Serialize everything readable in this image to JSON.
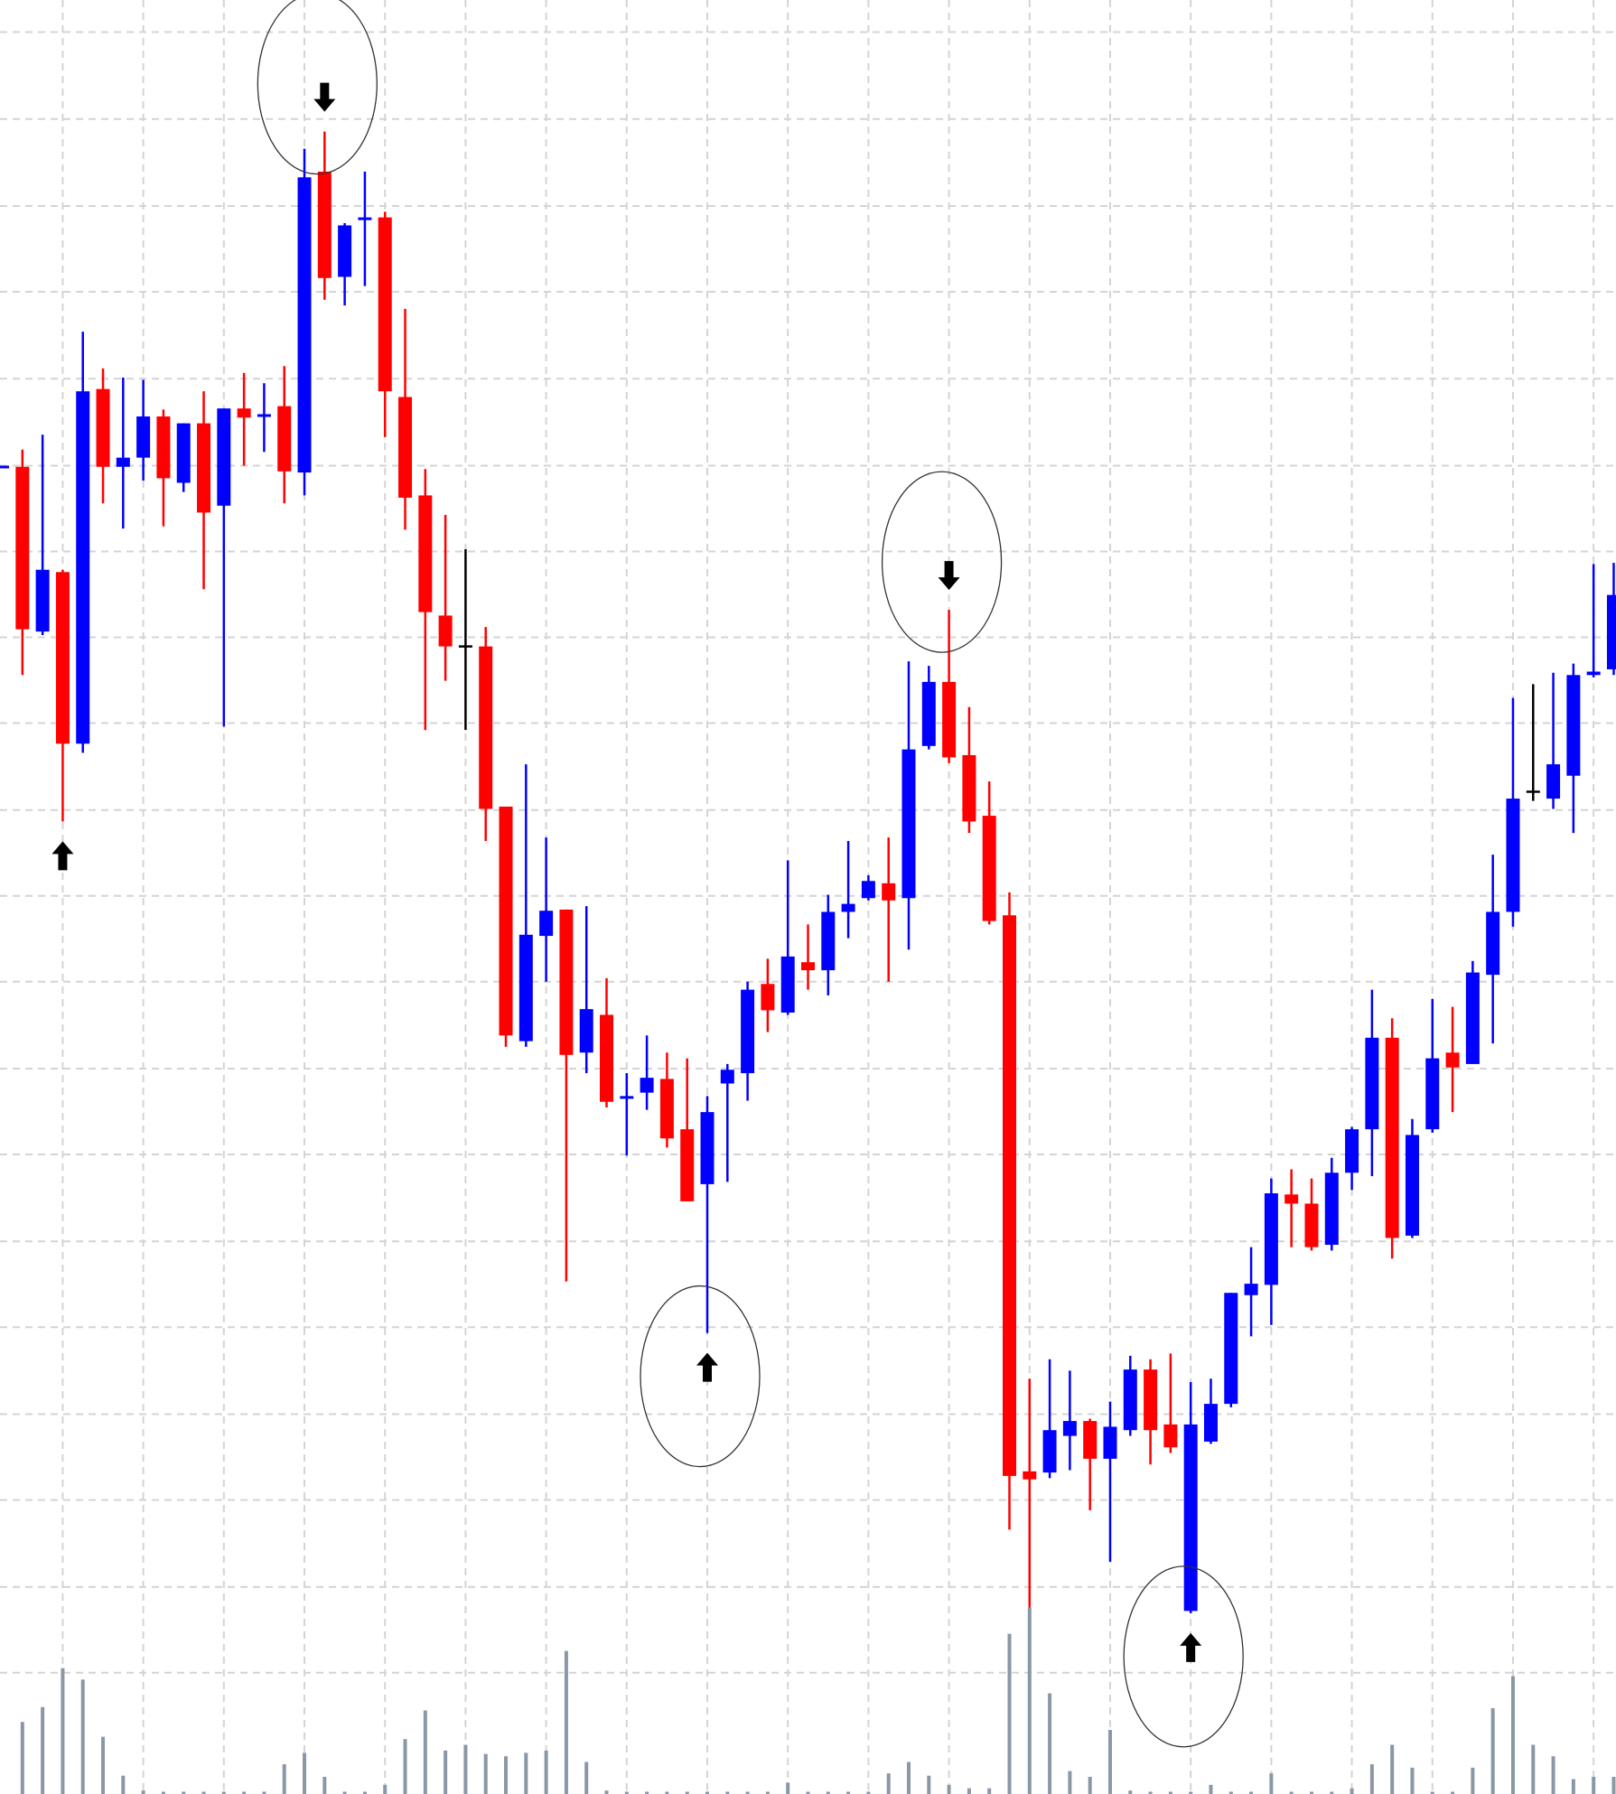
{
  "chart_data": {
    "type": "candlestick",
    "categories": [
      null,
      null,
      null,
      null,
      null,
      null,
      null,
      null,
      null,
      null,
      null,
      null,
      null,
      null,
      null,
      null,
      null,
      null,
      null,
      null,
      null,
      null,
      null,
      null,
      null,
      null,
      null,
      null,
      null,
      null,
      null,
      null,
      null,
      null,
      null,
      null,
      null,
      null,
      null,
      null,
      null,
      null,
      null,
      null,
      null,
      null,
      null,
      null,
      null,
      null,
      null,
      null,
      null,
      null,
      null,
      null,
      null,
      null,
      null,
      null,
      null,
      null,
      null,
      null,
      null,
      null,
      null,
      null,
      null,
      null,
      null,
      null,
      null,
      null,
      null,
      null,
      null,
      null,
      null,
      null,
      null
    ],
    "open": [
      1159,
      1160,
      1016,
      1068,
      918,
      1228,
      1160,
      1168,
      1204,
      1146,
      1198,
      1126,
      1211,
      1204,
      1213,
      1155,
      1418,
      1326,
      1376,
      1378,
      1221,
      1135,
      1030,
      1003,
      1003,
      863,
      658,
      750,
      773,
      648,
      681,
      608,
      613,
      625,
      581,
      533,
      621,
      630,
      708,
      683,
      727,
      720,
      771,
      783,
      796,
      783,
      916,
      972,
      908,
      855,
      768,
      282,
      281,
      313,
      326,
      293,
      318,
      371,
      323,
      160,
      308,
      341,
      436,
      445,
      524,
      516,
      480,
      543,
      581,
      661,
      488,
      581,
      648,
      638,
      716,
      771,
      876,
      870,
      890,
      978,
      983
    ],
    "high": [
      1161,
      1175,
      1188,
      1070,
      1278,
      1246,
      1238,
      1236,
      1210,
      1198,
      1226,
      1211,
      1242,
      1233,
      1248,
      1438,
      1453,
      1373,
      1418,
      1383,
      1298,
      1158,
      1118,
      1088,
      1020,
      863,
      900,
      836,
      773,
      776,
      713,
      630,
      663,
      648,
      643,
      610,
      638,
      710,
      730,
      816,
      760,
      786,
      833,
      803,
      836,
      990,
      986,
      1035,
      950,
      885,
      788,
      363,
      380,
      370,
      328,
      343,
      383,
      380,
      385,
      360,
      363,
      438,
      478,
      538,
      546,
      538,
      556,
      583,
      703,
      678,
      590,
      695,
      688,
      728,
      821,
      958,
      970,
      980,
      988,
      1075,
      1076
    ],
    "low": [
      1159,
      978,
      1013,
      850,
      910,
      1128,
      1106,
      1148,
      1108,
      1138,
      1053,
      933,
      1161,
      1173,
      1128,
      1135,
      1306,
      1301,
      1318,
      1186,
      1105,
      930,
      973,
      930,
      833,
      653,
      653,
      710,
      448,
      630,
      600,
      558,
      598,
      565,
      518,
      403,
      535,
      606,
      666,
      681,
      703,
      698,
      748,
      781,
      710,
      738,
      913,
      901,
      840,
      760,
      231,
      163,
      276,
      283,
      248,
      203,
      313,
      288,
      298,
      158,
      306,
      338,
      400,
      410,
      478,
      475,
      475,
      528,
      540,
      468,
      486,
      578,
      596,
      638,
      656,
      758,
      868,
      861,
      840,
      976,
      978
    ],
    "close": [
      1161,
      1018,
      1070,
      918,
      1226,
      1160,
      1168,
      1204,
      1150,
      1198,
      1120,
      1211,
      1203,
      1206,
      1156,
      1413,
      1325,
      1371,
      1378,
      1226,
      1133,
      1033,
      1003,
      1003,
      861,
      663,
      751,
      772,
      646,
      686,
      605,
      610,
      626,
      573,
      518,
      596,
      633,
      703,
      685,
      732,
      720,
      771,
      778,
      798,
      781,
      913,
      972,
      906,
      850,
      763,
      278,
      275,
      318,
      326,
      293,
      321,
      371,
      318,
      303,
      323,
      341,
      438,
      446,
      525,
      516,
      478,
      543,
      581,
      661,
      486,
      576,
      643,
      635,
      718,
      771,
      870,
      876,
      900,
      978,
      981,
      1048
    ],
    "volume": [
      0,
      63,
      76,
      110,
      100,
      50,
      16,
      3,
      2,
      2,
      2,
      2,
      2,
      2,
      26,
      36,
      15,
      2,
      2,
      8,
      48,
      73,
      38,
      43,
      35,
      33,
      36,
      38,
      125,
      28,
      3,
      2,
      2,
      2,
      2,
      2,
      2,
      2,
      2,
      10,
      2,
      2,
      2,
      2,
      18,
      28,
      16,
      8,
      5,
      5,
      140,
      163,
      88,
      20,
      15,
      56,
      3,
      2,
      2,
      2,
      8,
      2,
      2,
      18,
      2,
      2,
      2,
      5,
      26,
      43,
      23,
      2,
      2,
      23,
      75,
      103,
      43,
      33,
      13,
      15,
      15
    ],
    "up_color": "#0000ff",
    "down_color": "#ff0000",
    "doji_color": "#000000",
    "volume_color": "#8a97a6",
    "ylim": [
      0,
      1568
    ],
    "yticks": [
      106,
      181,
      257,
      332,
      408,
      483,
      559,
      634,
      710,
      785,
      860,
      936,
      1011,
      1086,
      1161,
      1237,
      1313,
      1388,
      1464,
      1540
    ],
    "grid": true,
    "markers": [
      {
        "index": 3,
        "direction": "up",
        "circled": false
      },
      {
        "index": 16,
        "direction": "down",
        "circled": true
      },
      {
        "index": 35,
        "direction": "up",
        "circled": true
      },
      {
        "index": 47,
        "direction": "down",
        "circled": true
      },
      {
        "index": 59,
        "direction": "up",
        "circled": true
      }
    ]
  }
}
